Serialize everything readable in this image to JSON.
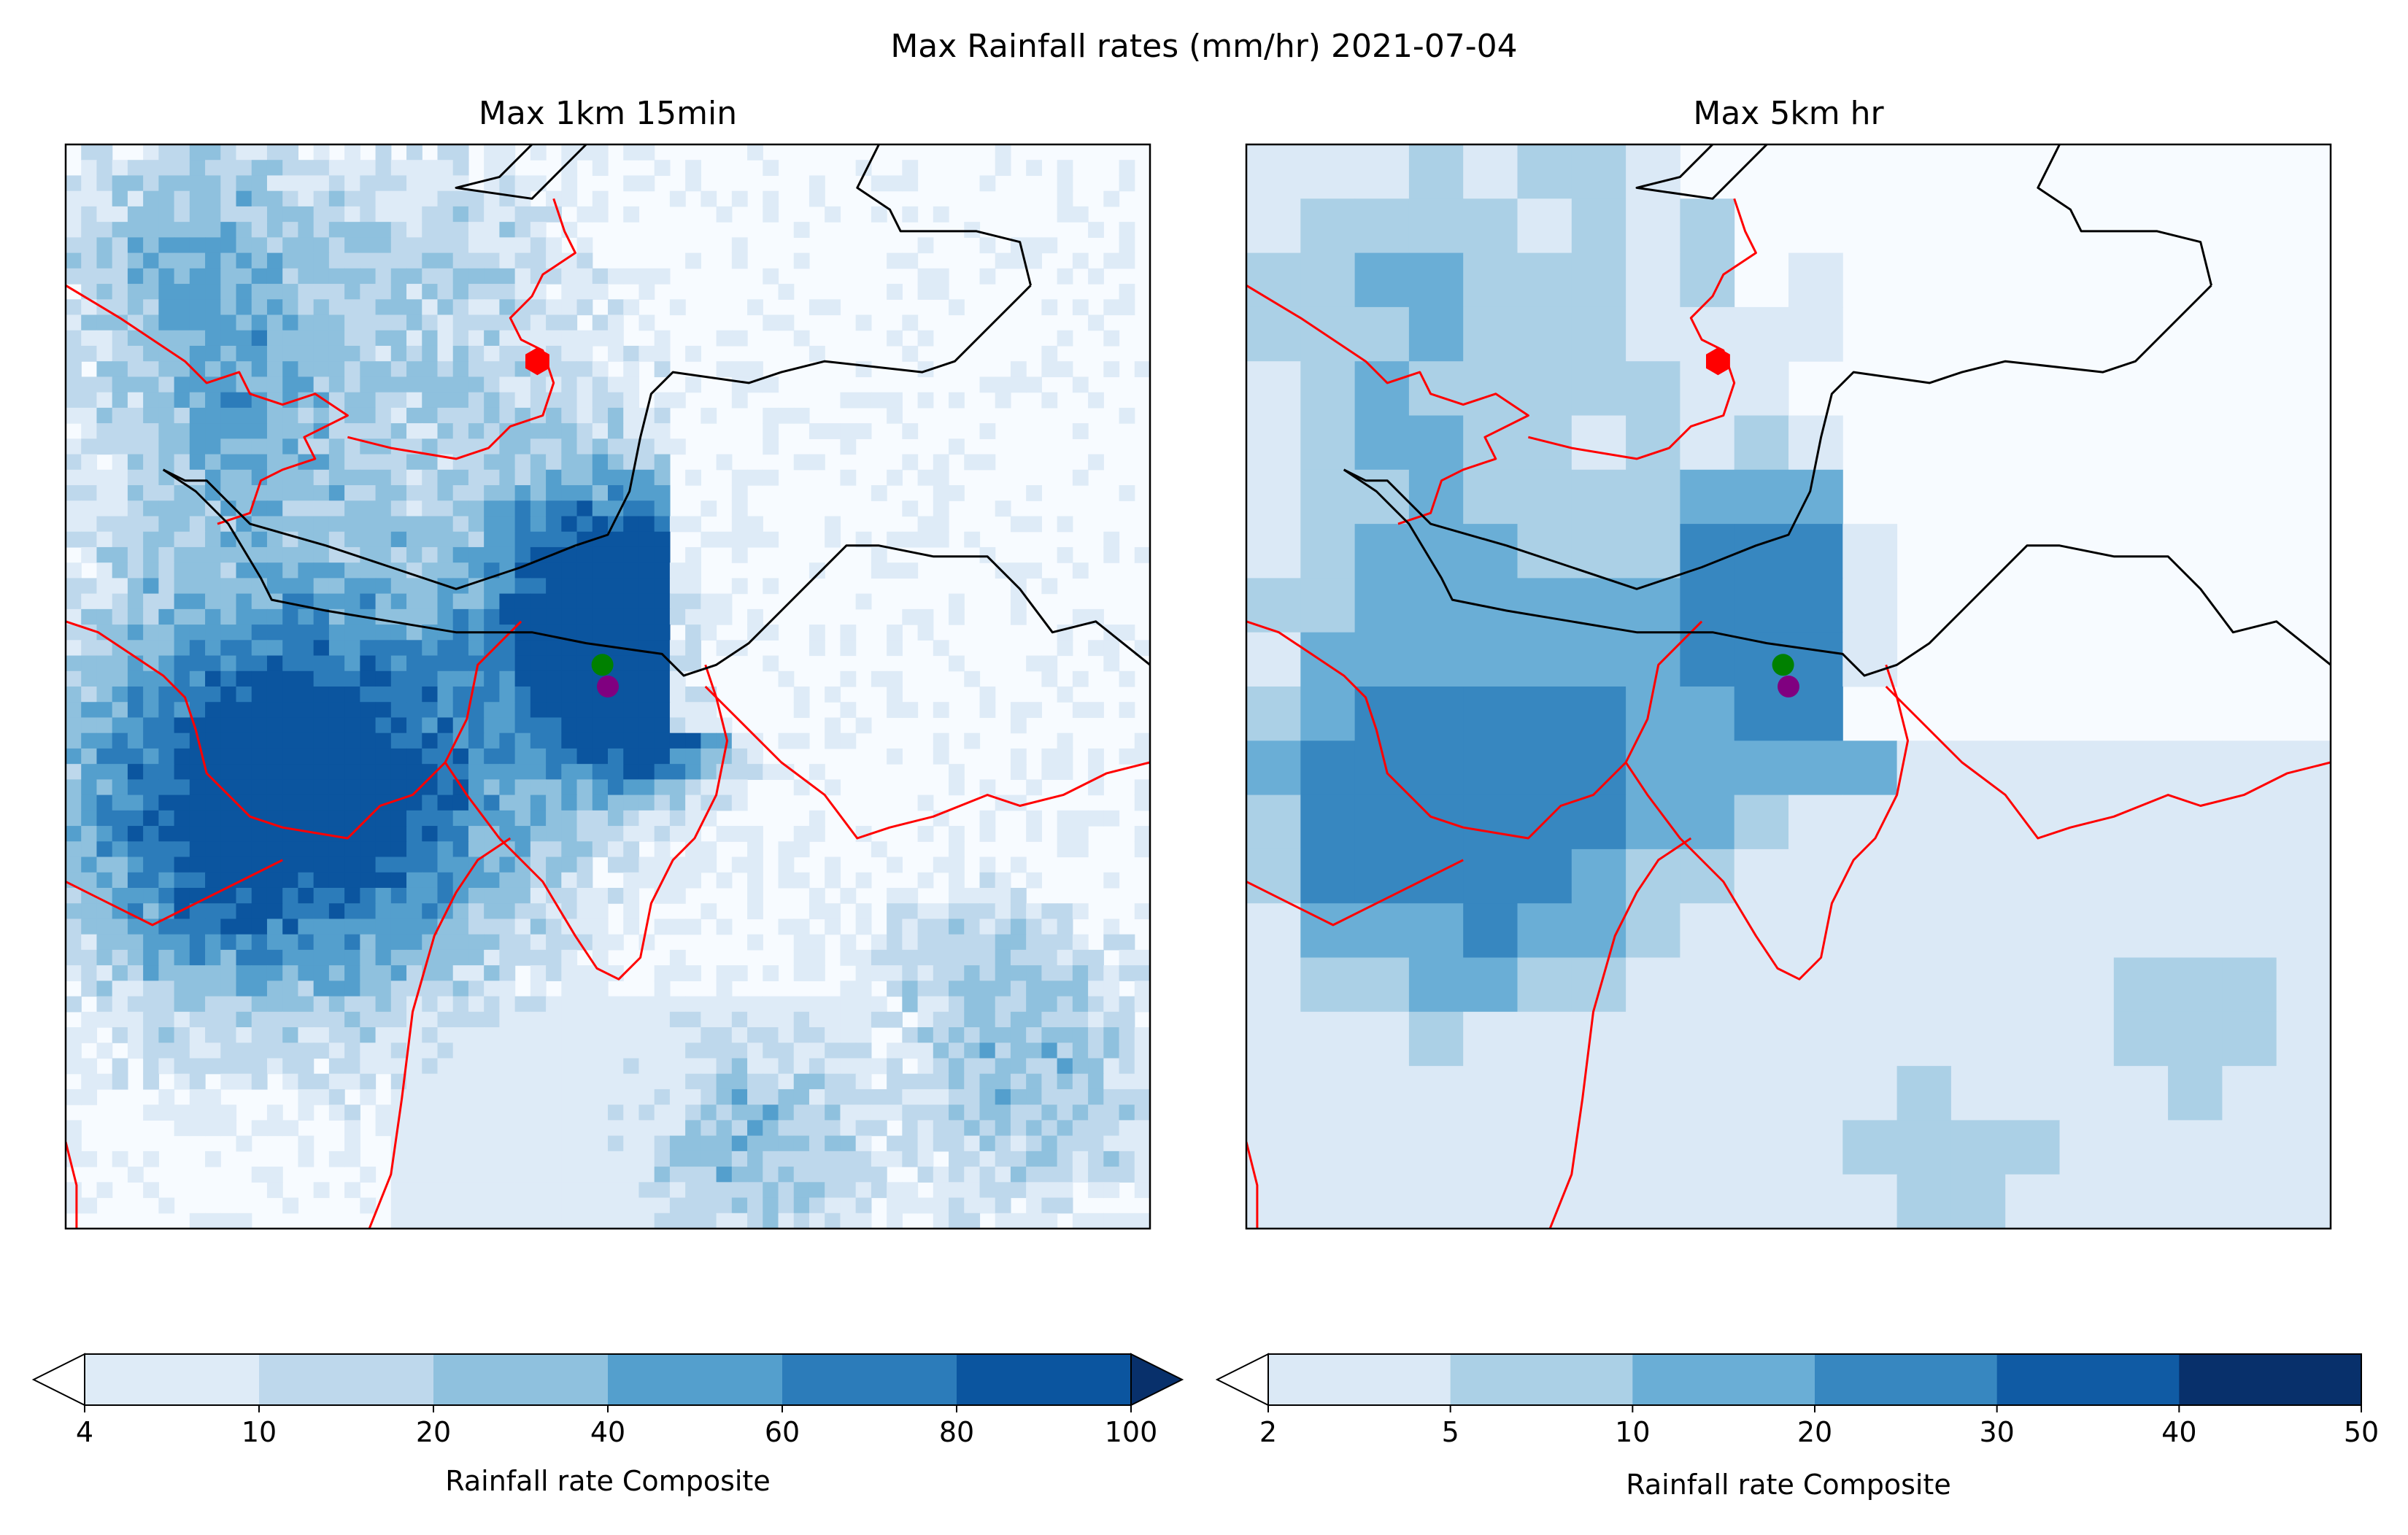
{
  "figure": {
    "title": "Max Rainfall rates (mm/hr) 2021-07-04"
  },
  "panels": [
    {
      "id": "left",
      "title": "Max 1km 15min",
      "grid_resolution": "1km",
      "colorbar": {
        "label": "Rainfall rate Composite",
        "ticks": [
          "4",
          "10",
          "20",
          "40",
          "60",
          "80",
          "100"
        ],
        "colors": [
          "#deebf7",
          "#bed8ec",
          "#8fc1de",
          "#549fcd",
          "#2c7cba",
          "#0b559f"
        ],
        "under_color": "#ffffff",
        "over_color": "#08306b",
        "extend": "both"
      }
    },
    {
      "id": "right",
      "title": "Max 5km hr",
      "grid_resolution": "5km",
      "colorbar": {
        "label": "Rainfall rate Composite",
        "ticks": [
          "2",
          "5",
          "10",
          "20",
          "30",
          "40",
          "50"
        ],
        "colors": [
          "#dbe9f6",
          "#abd0e6",
          "#6aaed6",
          "#3787c0",
          "#105ba4",
          "#08306b"
        ],
        "under_color": "#ffffff",
        "extend": "min"
      }
    }
  ],
  "markers": [
    {
      "name": "hexagon-site",
      "shape": "hexagon",
      "color": "#ff0000"
    },
    {
      "name": "green-site",
      "shape": "circle",
      "color": "#008000"
    },
    {
      "name": "purple-site",
      "shape": "circle",
      "color": "#800080"
    }
  ],
  "line_colors": {
    "coastline": "#000000",
    "borders": "#ff0000"
  },
  "map_bg": "#f7fbff"
}
